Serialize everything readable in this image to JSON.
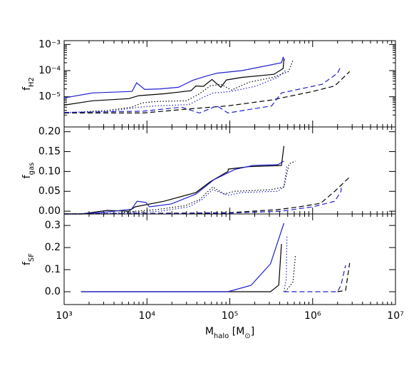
{
  "chart_data": [
    {
      "type": "line",
      "xlog": true,
      "ylog": true,
      "ylabel": [
        {
          "text": "f"
        },
        {
          "text": "H2",
          "sub": true
        }
      ],
      "xlim": [
        1000,
        10000000
      ],
      "xticks": [
        1000,
        10000,
        100000,
        1000000,
        10000000
      ],
      "ylim": [
        7e-07,
        0.0014
      ],
      "yticks": [
        {
          "value": 1e-05,
          "label": "10⁻⁵"
        },
        {
          "value": 0.0001,
          "label": "10⁻⁴"
        },
        {
          "value": 0.001,
          "label": "10⁻³"
        }
      ],
      "series": [
        {
          "color": "#000000",
          "line_style": "solid",
          "x": [
            1000,
            2200,
            6000,
            8000,
            16000,
            34000,
            39000,
            48000,
            61000,
            78000,
            91000,
            140000,
            340000,
            440000,
            450000
          ],
          "values": [
            4.8e-06,
            7e-06,
            8.5e-06,
            1.1e-05,
            1.3e-05,
            1.7e-05,
            2.6e-05,
            2.5e-05,
            4.6e-05,
            2.3e-05,
            4.4e-05,
            5.5e-05,
            7.2e-05,
            0.00012,
            0.00029
          ]
        },
        {
          "color": "#1f1fd0",
          "line_style": "solid",
          "x": [
            1000,
            2200,
            6600,
            7500,
            9400,
            14500,
            24000,
            36000,
            53000,
            70000,
            140000,
            420000,
            440000,
            460000
          ],
          "values": [
            9e-06,
            1.4e-05,
            1.6e-05,
            3.4e-05,
            1.9e-05,
            2e-05,
            2.3e-05,
            4.3e-05,
            6.3e-05,
            8e-05,
            0.0001,
            0.0002,
            0.00032,
            0.00025
          ]
        },
        {
          "color": "#000000",
          "line_style": "dotted",
          "x": [
            1000,
            3300,
            6500,
            8800,
            13000,
            30000,
            43000,
            58000,
            78000,
            105000,
            170000,
            340000,
            510000,
            580000
          ],
          "values": [
            2.4e-06,
            3e-06,
            4e-06,
            5.8e-06,
            6.6e-06,
            7e-06,
            1.3e-05,
            2.6e-05,
            3e-05,
            1.8e-05,
            3.6e-05,
            5.6e-05,
            9.2e-05,
            0.00025
          ]
        },
        {
          "color": "#1f1fd0",
          "line_style": "dotted",
          "x": [
            1000,
            3300,
            8000,
            13000,
            32000,
            48000,
            63000,
            105000,
            210000,
            380000,
            470000
          ],
          "values": [
            2.5e-06,
            2.7e-06,
            4e-06,
            4.5e-06,
            5e-06,
            9.6e-06,
            1.4e-05,
            1.6e-05,
            2.6e-05,
            5.6e-05,
            0.0001
          ]
        },
        {
          "color": "#000000",
          "line_style": "dashed",
          "x": [
            1000,
            9000,
            35000,
            95000,
            320000,
            1000000,
            1850000,
            2800000
          ],
          "values": [
            2.4e-06,
            2.4e-06,
            3.5e-06,
            4.5e-06,
            7.5e-06,
            1.6e-05,
            2.6e-05,
            9.2e-05
          ]
        },
        {
          "color": "#1f1fd0",
          "line_style": "dashed",
          "x": [
            1000,
            9000,
            26000,
            43000,
            70000,
            95000,
            320000,
            420000,
            1300000,
            2000000,
            2200000
          ],
          "values": [
            2.5e-06,
            2.8e-06,
            4e-06,
            2.4e-06,
            4.5e-06,
            2.4e-06,
            4.5e-06,
            1.4e-05,
            3e-05,
            8e-05,
            0.00015
          ]
        }
      ]
    },
    {
      "type": "line",
      "xlog": true,
      "ylog": false,
      "ylabel": [
        {
          "text": "f"
        },
        {
          "text": "gas",
          "sub": true
        }
      ],
      "xlim": [
        1000,
        10000000
      ],
      "xticks": [
        1000,
        10000,
        100000,
        1000000,
        10000000
      ],
      "ylim": [
        -0.007,
        0.212
      ],
      "yticks": [
        {
          "value": 0,
          "label": "0.00"
        },
        {
          "value": 0.05,
          "label": "0.05"
        },
        {
          "value": 0.1,
          "label": "0.10"
        },
        {
          "value": 0.15,
          "label": "0.15"
        },
        {
          "value": 0.2,
          "label": "0.20"
        }
      ],
      "series": [
        {
          "color": "#000000",
          "line_style": "solid",
          "x": [
            1000,
            1600,
            3300,
            6000,
            7200,
            16000,
            39000,
            58000,
            95000,
            96000,
            170000,
            420000,
            450000
          ],
          "values": [
            -0.007,
            -0.007,
            0.002,
            0,
            0.011,
            0.025,
            0.047,
            0.074,
            0.1,
            0.106,
            0.112,
            0.115,
            0.164
          ]
        },
        {
          "color": "#1f1fd0",
          "line_style": "solid",
          "x": [
            1000,
            1600,
            3300,
            6500,
            7600,
            9700,
            10700,
            19500,
            39000,
            64000,
            115000,
            190000,
            380000,
            450000
          ],
          "values": [
            -0.007,
            -0.007,
            -0.002,
            0.005,
            0.025,
            0.022,
            0.011,
            0.018,
            0.043,
            0.079,
            0.105,
            0.115,
            0.117,
            0.126
          ]
        },
        {
          "color": "#000000",
          "line_style": "dotted",
          "x": [
            1000,
            3300,
            7200,
            13000,
            29000,
            43000,
            62000,
            86000,
            115000,
            310000,
            450000,
            520000,
            620000
          ],
          "values": [
            -0.007,
            -0.007,
            0,
            0.004,
            0.014,
            0.029,
            0.061,
            0.043,
            0.05,
            0.054,
            0.061,
            0.119,
            0.126
          ]
        },
        {
          "color": "#1f1fd0",
          "line_style": "dotted",
          "x": [
            1000,
            7200,
            14500,
            32000,
            46000,
            62000,
            95000,
            140000,
            380000,
            450000,
            490000
          ],
          "values": [
            -0.007,
            -0.004,
            0,
            0.011,
            0.029,
            0.054,
            0.04,
            0.047,
            0.05,
            0.061,
            0.115
          ]
        },
        {
          "color": "#000000",
          "line_style": "dashed",
          "x": [
            1000,
            95000,
            380000,
            690000,
            1250000,
            1850000,
            2800000
          ],
          "values": [
            -0.007,
            -0.004,
            0.004,
            0.011,
            0.02,
            0.05,
            0.086
          ]
        },
        {
          "color": "#1f1fd0",
          "line_style": "dashed",
          "x": [
            1000,
            95000,
            420000,
            1000000,
            1850000,
            2200000,
            2210000
          ],
          "values": [
            -0.007,
            -0.005,
            0,
            0.011,
            0.025,
            0.05,
            0.059
          ]
        }
      ]
    },
    {
      "type": "line",
      "xlog": true,
      "ylog": false,
      "ylabel": [
        {
          "text": "f"
        },
        {
          "text": "SF",
          "sub": true
        }
      ],
      "xlabel": [
        {
          "text": "M"
        },
        {
          "text": "halo",
          "sub": true
        },
        {
          "text": " [M"
        },
        {
          "text": "⊙",
          "sub": true
        },
        {
          "text": "]"
        }
      ],
      "xlim": [
        1000,
        10000000
      ],
      "xticks": [
        {
          "value": 1000,
          "label": "10³"
        },
        {
          "value": 10000,
          "label": "10⁴"
        },
        {
          "value": 100000,
          "label": "10⁵"
        },
        {
          "value": 1000000,
          "label": "10⁶"
        },
        {
          "value": 10000000,
          "label": "10⁷"
        }
      ],
      "ylim": [
        -0.058,
        0.352
      ],
      "yticks": [
        {
          "value": 0,
          "label": "0.0"
        },
        {
          "value": 0.1,
          "label": "0.1"
        },
        {
          "value": 0.2,
          "label": "0.2"
        },
        {
          "value": 0.3,
          "label": "0.3"
        }
      ],
      "series": [
        {
          "color": "#000000",
          "line_style": "solid",
          "x": [
            1600,
            310000,
            390000,
            420000
          ],
          "values": [
            0,
            0,
            0.03,
            0.216
          ]
        },
        {
          "color": "#1f1fd0",
          "line_style": "solid",
          "x": [
            1600,
            95000,
            180000,
            310000,
            450000
          ],
          "values": [
            0,
            0,
            0.029,
            0.126,
            0.31
          ]
        },
        {
          "color": "#000000",
          "line_style": "dotted",
          "x": [
            470000,
            580000,
            620000
          ],
          "values": [
            0,
            0.045,
            0.165
          ]
        },
        {
          "color": "#1f1fd0",
          "line_style": "dotted",
          "x": [
            450000,
            480000,
            490000
          ],
          "values": [
            0,
            0.055,
            0.255
          ]
        },
        {
          "color": "#000000",
          "line_style": "dashed",
          "x": [
            2000000,
            2500000,
            2800000
          ],
          "values": [
            0,
            0.006,
            0.13
          ]
        },
        {
          "color": "#1f1fd0",
          "line_style": "dashed",
          "x": [
            450000,
            2000000,
            2200000,
            2500000
          ],
          "values": [
            0,
            0,
            0.03,
            0.12
          ]
        }
      ]
    }
  ]
}
